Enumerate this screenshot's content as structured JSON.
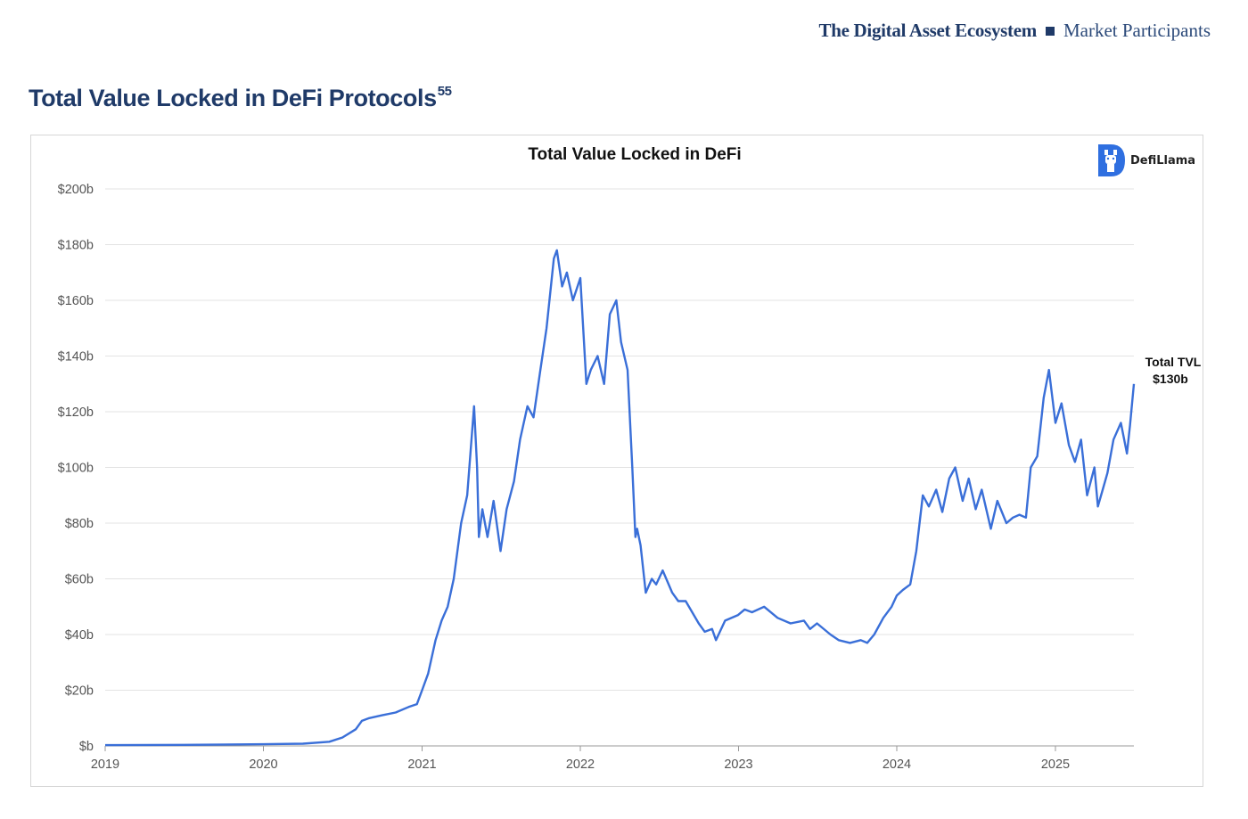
{
  "header": {
    "doc_title": "The Digital Asset Ecosystem",
    "section": "Market Participants"
  },
  "page": {
    "title": "Total Value Locked in DeFi Protocols",
    "footnote": "55"
  },
  "logo": {
    "text": "DefiLlama"
  },
  "chart_data": {
    "type": "line",
    "title": "Total Value Locked in DeFi",
    "xlabel": "",
    "ylabel": "",
    "x_ticks": [
      "2019",
      "2020",
      "2021",
      "2022",
      "2023",
      "2024",
      "2025"
    ],
    "y_ticks": [
      "$0b",
      "$20b",
      "$40b",
      "$60b",
      "$80b",
      "$100b",
      "$120b",
      "$140b",
      "$160b",
      "$180b",
      "$200b"
    ],
    "y_tick_labels": [
      "$b",
      "$20b",
      "$40b",
      "$60b",
      "$80b",
      "$100b",
      "$120b",
      "$140b",
      "$160b",
      "$180b",
      "$200b"
    ],
    "ylim": [
      0,
      200
    ],
    "xlim": [
      "2019-01-01",
      "2025-07-01"
    ],
    "grid": true,
    "color": "#3a6fd8",
    "annotation": {
      "line1": "Total TVL",
      "line2": "$130b"
    },
    "series": [
      {
        "x": [
          "2019-01-01",
          "2019-07-01",
          "2020-01-01",
          "2020-04-01",
          "2020-06-01",
          "2020-07-01",
          "2020-08-01",
          "2020-08-15",
          "2020-09-01",
          "2020-10-01",
          "2020-11-01",
          "2020-12-01",
          "2020-12-20",
          "2021-01-01",
          "2021-01-15",
          "2021-02-01",
          "2021-02-15",
          "2021-03-01",
          "2021-03-15",
          "2021-04-01",
          "2021-04-15",
          "2021-05-01",
          "2021-05-08",
          "2021-05-12",
          "2021-05-20",
          "2021-06-01",
          "2021-06-15",
          "2021-07-01",
          "2021-07-15",
          "2021-08-01",
          "2021-08-15",
          "2021-09-01",
          "2021-09-15",
          "2021-10-01",
          "2021-10-15",
          "2021-11-01",
          "2021-11-08",
          "2021-11-20",
          "2021-12-01",
          "2021-12-15",
          "2022-01-01",
          "2022-01-15",
          "2022-01-25",
          "2022-02-10",
          "2022-02-25",
          "2022-03-10",
          "2022-03-25",
          "2022-04-05",
          "2022-04-20",
          "2022-05-01",
          "2022-05-08",
          "2022-05-12",
          "2022-05-20",
          "2022-06-01",
          "2022-06-15",
          "2022-06-25",
          "2022-07-10",
          "2022-08-01",
          "2022-08-15",
          "2022-09-01",
          "2022-10-01",
          "2022-10-15",
          "2022-11-01",
          "2022-11-10",
          "2022-12-01",
          "2022-12-31",
          "2023-01-15",
          "2023-02-01",
          "2023-03-01",
          "2023-04-01",
          "2023-05-01",
          "2023-06-01",
          "2023-06-15",
          "2023-07-01",
          "2023-08-01",
          "2023-08-20",
          "2023-09-15",
          "2023-10-10",
          "2023-10-25",
          "2023-11-10",
          "2023-12-01",
          "2023-12-20",
          "2024-01-01",
          "2024-01-15",
          "2024-02-01",
          "2024-02-15",
          "2024-03-01",
          "2024-03-15",
          "2024-04-01",
          "2024-04-15",
          "2024-05-01",
          "2024-05-15",
          "2024-06-01",
          "2024-06-15",
          "2024-07-01",
          "2024-07-15",
          "2024-08-05",
          "2024-08-20",
          "2024-09-10",
          "2024-09-25",
          "2024-10-10",
          "2024-10-25",
          "2024-11-05",
          "2024-11-20",
          "2024-12-05",
          "2024-12-17",
          "2025-01-01",
          "2025-01-15",
          "2025-02-01",
          "2025-02-15",
          "2025-03-01",
          "2025-03-15",
          "2025-04-01",
          "2025-04-09",
          "2025-04-20",
          "2025-05-01",
          "2025-05-15",
          "2025-06-01",
          "2025-06-15",
          "2025-06-22",
          "2025-07-01"
        ],
        "y": [
          0.3,
          0.4,
          0.6,
          0.8,
          1.5,
          3,
          6,
          9,
          10,
          11,
          12,
          14,
          15,
          20,
          26,
          38,
          45,
          50,
          60,
          80,
          90,
          122,
          100,
          75,
          85,
          75,
          88,
          70,
          85,
          95,
          110,
          122,
          118,
          135,
          150,
          175,
          178,
          165,
          170,
          160,
          168,
          130,
          135,
          140,
          130,
          155,
          160,
          145,
          135,
          100,
          75,
          78,
          72,
          55,
          60,
          58,
          63,
          55,
          52,
          52,
          44,
          41,
          42,
          38,
          45,
          47,
          49,
          48,
          50,
          46,
          44,
          45,
          42,
          44,
          40,
          38,
          37,
          38,
          37,
          40,
          46,
          50,
          54,
          56,
          58,
          70,
          90,
          86,
          92,
          84,
          96,
          100,
          88,
          96,
          85,
          92,
          78,
          88,
          80,
          82,
          83,
          82,
          100,
          104,
          125,
          135,
          116,
          123,
          108,
          102,
          110,
          90,
          100,
          86,
          92,
          98,
          110,
          116,
          105,
          115,
          130
        ]
      }
    ]
  }
}
